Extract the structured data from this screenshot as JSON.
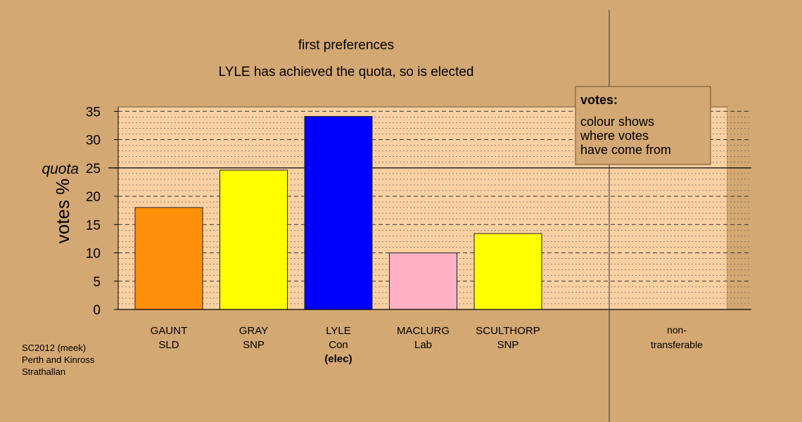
{
  "chart_data": {
    "type": "bar",
    "title": "first preferences",
    "subtitle": "LYLE has achieved the quota, so is elected",
    "ylabel": "votes %",
    "ylim": [
      0,
      35
    ],
    "yticks": [
      0,
      5,
      10,
      15,
      20,
      25,
      30,
      35
    ],
    "quota": 25,
    "quota_label": "quota",
    "categories": [
      {
        "name": "GAUNT",
        "party": "SLD",
        "note": "",
        "value": 18.0,
        "color": "#ff9009"
      },
      {
        "name": "GRAY",
        "party": "SNP",
        "note": "",
        "value": 24.6,
        "color": "#ffff00"
      },
      {
        "name": "LYLE",
        "party": "Con",
        "note": "(elec)",
        "value": 34.1,
        "color": "#0000ff"
      },
      {
        "name": "MACLURG",
        "party": "Lab",
        "note": "",
        "value": 10.0,
        "color": "#ffb0c4"
      },
      {
        "name": "SCULTHORP",
        "party": "SNP",
        "note": "",
        "value": 13.4,
        "color": "#ffff00"
      }
    ],
    "nontransferable": {
      "line1": "non-",
      "line2": "transferable",
      "value": 0
    },
    "legend": {
      "title": "votes:",
      "lines": [
        "colour shows",
        "where votes",
        "have come from"
      ]
    },
    "grid": true
  },
  "footer": {
    "lines": [
      "SC2012 (meek)",
      "Perth and Kinross",
      "Strathallan"
    ]
  },
  "colors": {
    "background": "#d4a873",
    "plot_area": "#fbd0a2",
    "nt_area": "#d4a873"
  }
}
